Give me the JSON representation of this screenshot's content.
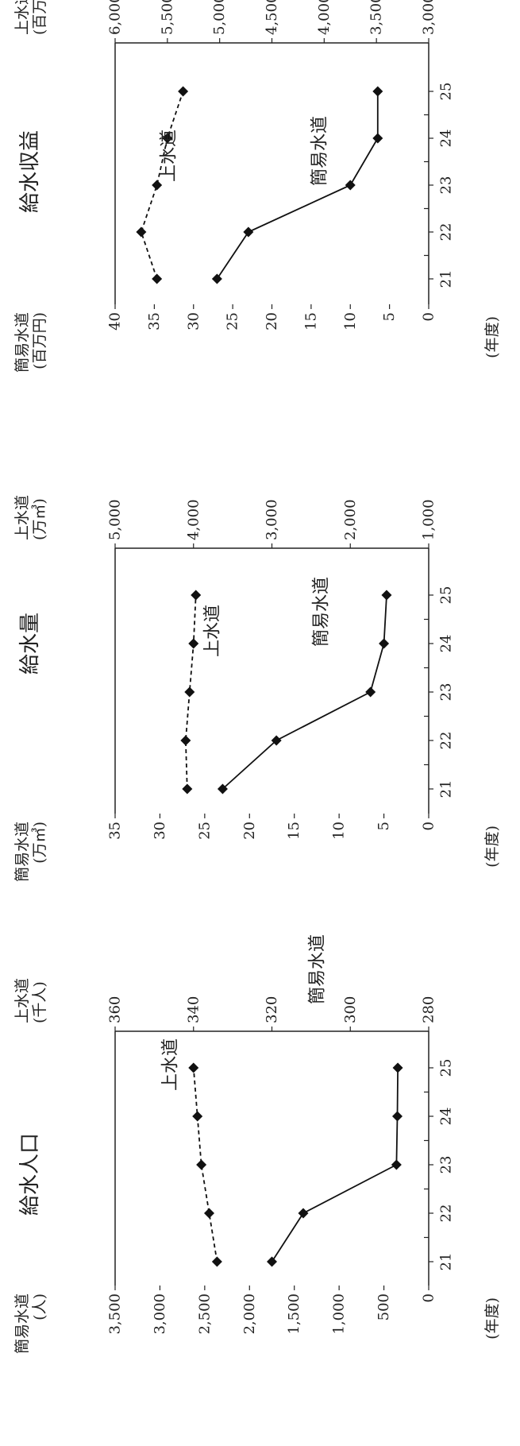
{
  "chart_data": [
    {
      "type": "line",
      "title": "給水人口",
      "x_ticks": [
        "21",
        "22",
        "23",
        "24",
        "25"
      ],
      "x_unit": "(年度)",
      "left_axis": {
        "label_line1": "上水道",
        "label_line2": "(千人)",
        "ticks": [
          "280",
          "300",
          "320",
          "340",
          "360"
        ],
        "range": [
          280,
          360
        ]
      },
      "right_axis": {
        "label_line1": "簡易水道",
        "label_line2": "(人)",
        "ticks": [
          "0",
          "500",
          "1,000",
          "1,500",
          "2,000",
          "2,500",
          "3,000",
          "3,500"
        ],
        "range": [
          0,
          3500
        ]
      },
      "series": [
        {
          "name": "上水道",
          "axis": "left",
          "style": "dashed",
          "values": [
            334,
            336,
            338,
            339,
            340
          ]
        },
        {
          "name": "簡易水道",
          "axis": "right",
          "style": "solid",
          "values": [
            1750,
            1400,
            360,
            350,
            345
          ]
        }
      ]
    },
    {
      "type": "line",
      "title": "給水量",
      "x_ticks": [
        "21",
        "22",
        "23",
        "24",
        "25"
      ],
      "x_unit": "(年度)",
      "left_axis": {
        "label_line1": "上水道",
        "label_line2": "(万㎥)",
        "ticks": [
          "1,000",
          "2,000",
          "3,000",
          "4,000",
          "5,000"
        ],
        "range": [
          1000,
          5000
        ]
      },
      "right_axis": {
        "label_line1": "簡易水道",
        "label_line2": "(万㎥)",
        "ticks": [
          "0",
          "5",
          "10",
          "15",
          "20",
          "25",
          "30",
          "35"
        ],
        "range": [
          0,
          35
        ]
      },
      "series": [
        {
          "name": "上水道",
          "axis": "left",
          "style": "dashed",
          "values": [
            4080,
            4100,
            4050,
            4000,
            3970
          ]
        },
        {
          "name": "簡易水道",
          "axis": "right",
          "style": "solid",
          "values": [
            23,
            17,
            6.5,
            5,
            4.7
          ]
        }
      ]
    },
    {
      "type": "line",
      "title": "給水収益",
      "x_ticks": [
        "21",
        "22",
        "23",
        "24",
        "25"
      ],
      "x_unit": "(年度)",
      "left_axis": {
        "label_line1": "上水道",
        "label_line2": "(百万円)",
        "ticks": [
          "3,000",
          "3,500",
          "4,000",
          "4,500",
          "5,000",
          "5,500",
          "6,000"
        ],
        "range": [
          3000,
          6000
        ]
      },
      "right_axis": {
        "label_line1": "簡易水道",
        "label_line2": "(百万円)",
        "ticks": [
          "0",
          "5",
          "10",
          "15",
          "20",
          "25",
          "30",
          "35",
          "40"
        ],
        "range": [
          0,
          40
        ]
      },
      "series": [
        {
          "name": "上水道",
          "axis": "left",
          "style": "dashed",
          "values": [
            5600,
            5750,
            5600,
            5500,
            5350
          ]
        },
        {
          "name": "簡易水道",
          "axis": "right",
          "style": "solid",
          "values": [
            27,
            23,
            10,
            6.5,
            6.5
          ]
        }
      ]
    }
  ]
}
